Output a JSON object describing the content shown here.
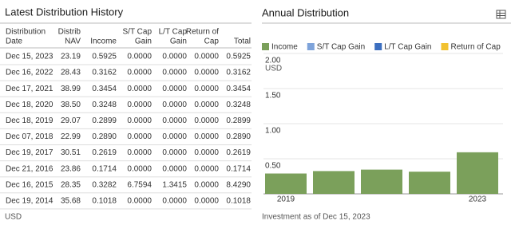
{
  "table": {
    "title": "Latest Distribution History",
    "header": [
      [
        "Distribution",
        "Date"
      ],
      [
        "Distrib",
        "NAV"
      ],
      [
        "Income"
      ],
      [
        "S/T Cap",
        "Gain"
      ],
      [
        "L/T Cap",
        "Gain"
      ],
      [
        "Return of",
        "Cap"
      ],
      [
        "Total"
      ]
    ],
    "rows": [
      [
        "Dec 15, 2023",
        "23.19",
        "0.5925",
        "0.0000",
        "0.0000",
        "0.0000",
        "0.5925"
      ],
      [
        "Dec 16, 2022",
        "28.43",
        "0.3162",
        "0.0000",
        "0.0000",
        "0.0000",
        "0.3162"
      ],
      [
        "Dec 17, 2021",
        "38.99",
        "0.3454",
        "0.0000",
        "0.0000",
        "0.0000",
        "0.3454"
      ],
      [
        "Dec 18, 2020",
        "38.50",
        "0.3248",
        "0.0000",
        "0.0000",
        "0.0000",
        "0.3248"
      ],
      [
        "Dec 18, 2019",
        "29.07",
        "0.2899",
        "0.0000",
        "0.0000",
        "0.0000",
        "0.2899"
      ],
      [
        "Dec 07, 2018",
        "22.99",
        "0.2890",
        "0.0000",
        "0.0000",
        "0.0000",
        "0.2890"
      ],
      [
        "Dec 19, 2017",
        "30.51",
        "0.2619",
        "0.0000",
        "0.0000",
        "0.0000",
        "0.2619"
      ],
      [
        "Dec 21, 2016",
        "23.86",
        "0.1714",
        "0.0000",
        "0.0000",
        "0.0000",
        "0.1714"
      ],
      [
        "Dec 16, 2015",
        "28.35",
        "0.3282",
        "6.7594",
        "1.3415",
        "0.0000",
        "8.4290"
      ],
      [
        "Dec 19, 2014",
        "35.68",
        "0.1018",
        "0.0000",
        "0.0000",
        "0.0000",
        "0.1018"
      ]
    ],
    "footnote": "USD"
  },
  "chart_data": {
    "type": "bar",
    "title": "Annual Distribution",
    "y_unit": "USD",
    "categories": [
      "2019",
      null,
      null,
      null,
      "2023"
    ],
    "series": [
      {
        "name": "Income",
        "color": "#7ba05b",
        "values": [
          0.2899,
          0.3248,
          0.3454,
          0.3162,
          0.5925
        ]
      },
      {
        "name": "S/T Cap Gain",
        "color": "#7ea3da",
        "values": [
          0,
          0,
          0,
          0,
          0
        ]
      },
      {
        "name": "L/T Cap Gain",
        "color": "#3c6fc0",
        "values": [
          0,
          0,
          0,
          0,
          0
        ]
      },
      {
        "name": "Return of Cap",
        "color": "#f2c230",
        "values": [
          0,
          0,
          0,
          0,
          0
        ]
      }
    ],
    "ylim": [
      0,
      2
    ],
    "yticks": [
      {
        "value": 0,
        "label": "0.00"
      },
      {
        "value": 0.5,
        "label": "0.50"
      },
      {
        "value": 1,
        "label": "1.00"
      },
      {
        "value": 1.5,
        "label": "1.50"
      },
      {
        "value": 2,
        "label": "2.00"
      }
    ],
    "grid": true,
    "footnote": "Investment as of Dec 15, 2023"
  }
}
